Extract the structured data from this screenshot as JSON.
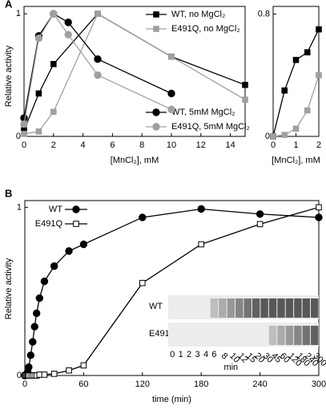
{
  "chart_data": [
    {
      "type": "line",
      "panel_label": "A",
      "xlabel": "[MnCl₂], mM",
      "ylabel": "Relative activity",
      "xlim": [
        0,
        15
      ],
      "ylim": [
        0,
        1.06
      ],
      "xticks": [
        0,
        2,
        4,
        6,
        8,
        10,
        12,
        14
      ],
      "yticks": [
        0,
        1
      ],
      "series": [
        {
          "name": "WT, no MgCl₂",
          "color": "#000000",
          "marker": "square",
          "legend": "upper right",
          "x": [
            0,
            1,
            2,
            5,
            10,
            15
          ],
          "values": [
            0.05,
            0.35,
            0.59,
            1.0,
            0.65,
            0.42
          ]
        },
        {
          "name": "E491Q, no MgCl₂",
          "color": "#a0a0a0",
          "marker": "square",
          "legend": "upper right",
          "x": [
            0,
            1,
            2,
            5,
            10,
            15
          ],
          "values": [
            0.02,
            0.04,
            0.2,
            1.0,
            0.65,
            0.3
          ]
        },
        {
          "name": "WT, 5mM MgCl₂",
          "color": "#000000",
          "marker": "circle",
          "legend": "lower right",
          "x": [
            0,
            1,
            2,
            3,
            5,
            10
          ],
          "values": [
            0.15,
            0.82,
            1.0,
            0.93,
            0.63,
            0.35
          ]
        },
        {
          "name": "E491Q, 5mM MgCl₂",
          "color": "#a0a0a0",
          "marker": "circle",
          "legend": "lower right",
          "x": [
            0,
            1,
            2,
            3,
            5,
            10
          ],
          "values": [
            0.1,
            0.8,
            1.0,
            0.83,
            0.5,
            0.22
          ]
        }
      ]
    },
    {
      "type": "line",
      "xlabel": "[MnCl₂], mM",
      "xlim": [
        0,
        2
      ],
      "ylim": [
        0,
        0.85
      ],
      "xticks": [
        0,
        1,
        2
      ],
      "yticks": [
        0,
        0.8
      ],
      "series": [
        {
          "color": "#000000",
          "marker": "square",
          "x": [
            0,
            0.5,
            1,
            1.5,
            2
          ],
          "values": [
            0.0,
            0.3,
            0.5,
            0.55,
            0.7
          ]
        },
        {
          "color": "#a0a0a0",
          "marker": "square",
          "x": [
            0,
            0.5,
            1,
            1.5,
            2
          ],
          "values": [
            0.0,
            0.01,
            0.05,
            0.17,
            0.4
          ]
        }
      ]
    },
    {
      "type": "line",
      "panel_label": "B",
      "xlabel": "time (min)",
      "ylabel": "Relative activity",
      "xlim": [
        0,
        300
      ],
      "ylim": [
        0,
        1.04
      ],
      "xticks": [
        0,
        60,
        120,
        180,
        240,
        300
      ],
      "yticks": [
        0,
        1
      ],
      "series": [
        {
          "name": "WT",
          "color": "#000000",
          "marker": "circle",
          "filled": true,
          "legend": "upper left",
          "x": [
            0,
            1,
            2,
            3,
            4,
            6,
            8,
            10,
            12,
            15,
            20,
            30,
            45,
            60,
            120,
            180,
            240,
            300
          ],
          "values": [
            0,
            0.005,
            0.01,
            0.02,
            0.05,
            0.12,
            0.2,
            0.29,
            0.37,
            0.46,
            0.56,
            0.65,
            0.74,
            0.78,
            0.94,
            0.99,
            0.96,
            0.94
          ]
        },
        {
          "name": "E491Q",
          "color": "#000000",
          "marker": "square",
          "filled": false,
          "legend": "upper left",
          "x": [
            0,
            1,
            2,
            3,
            4,
            6,
            8,
            10,
            12,
            15,
            20,
            30,
            45,
            60,
            120,
            180,
            240,
            300
          ],
          "values": [
            0,
            0,
            0,
            0,
            0,
            0,
            0,
            0,
            0,
            0.005,
            0.005,
            0.01,
            0.03,
            0.06,
            0.55,
            0.78,
            0.9,
            1.0
          ]
        }
      ],
      "gel": {
        "rows": [
          "WT",
          "E491Q"
        ],
        "lanes": [
          0,
          1,
          2,
          3,
          4,
          6,
          8,
          10,
          12,
          15,
          20,
          30,
          45,
          60,
          120,
          180,
          240,
          300
        ],
        "unit": "min"
      }
    }
  ]
}
